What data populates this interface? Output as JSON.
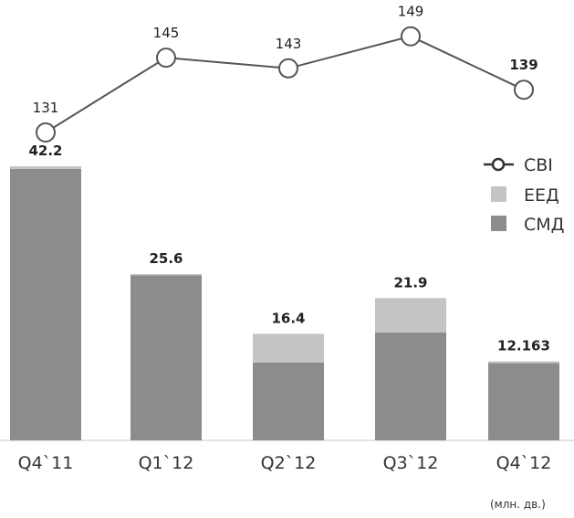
{
  "chart_data": {
    "type": "bar",
    "categories": [
      "Q4`11",
      "Q1`12",
      "Q2`12",
      "Q3`12",
      "Q4`12"
    ],
    "bar_labels": [
      "42.2",
      "25.6",
      "16.4",
      "21.9",
      "12.163"
    ],
    "series": [
      {
        "name": "СМД",
        "type": "bar",
        "stacked": true,
        "values": [
          41.8,
          25.4,
          12.0,
          16.6,
          11.9
        ]
      },
      {
        "name": "ЕЕД",
        "type": "bar",
        "stacked": true,
        "values": [
          0.4,
          0.2,
          4.4,
          5.3,
          0.263
        ]
      },
      {
        "name": "СВІ",
        "type": "line",
        "values": [
          131,
          145,
          143,
          149,
          139
        ]
      }
    ],
    "line_labels": [
      "131",
      "145",
      "143",
      "149",
      "139"
    ],
    "unit_label": "(млн. дв.)",
    "legend_position": "right",
    "grid": false
  },
  "colors": {
    "smd": "#8c8c8c",
    "eed": "#c4c4c4",
    "line": "#555555",
    "marker_fill": "#ffffff",
    "baseline": "#dddddd"
  },
  "legend": {
    "items": [
      {
        "name": "СВІ",
        "marker": "line-circle-icon"
      },
      {
        "name": "ЕЕД",
        "marker": "square-light-icon"
      },
      {
        "name": "СМД",
        "marker": "square-dark-icon"
      }
    ]
  }
}
